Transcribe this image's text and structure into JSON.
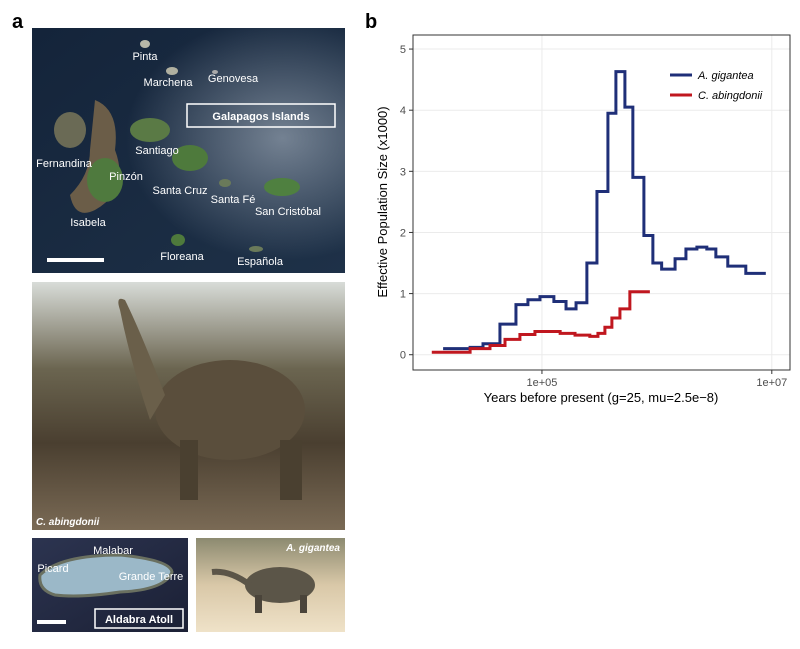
{
  "panel_labels": [
    "a",
    "b"
  ],
  "map": {
    "title": "Galapagos Islands",
    "islands": [
      "Pinta",
      "Marchena",
      "Genovesa",
      "Santiago",
      "Fernandina",
      "Pinzón",
      "Santa Cruz",
      "Santa Fé",
      "San Cristóbal",
      "Isabela",
      "Floreana",
      "Española"
    ]
  },
  "tortoise_photo": {
    "caption": "C. abingdonii"
  },
  "atoll": {
    "title": "Aldabra Atoll",
    "places": [
      "Picard",
      "Malabar",
      "Grande Terre"
    ]
  },
  "gigantea_photo": {
    "caption": "A. gigantea"
  },
  "chart_data": {
    "type": "step",
    "x_label": "Years before present (g=25, mu=2.5e−8)",
    "y_label": "Effective Population Size (x1000)",
    "log_x": true,
    "grid": true,
    "legend": "top-right",
    "xlim": [
      7550,
      14400000
    ],
    "ylim": [
      -0.25,
      5.23
    ],
    "xticks": [
      {
        "value": 100000,
        "label": "1e+05"
      },
      {
        "value": 10000000,
        "label": "1e+07"
      }
    ],
    "yticks": [
      0,
      1,
      2,
      3,
      4,
      5
    ],
    "series": [
      {
        "name": "A. gigantea",
        "color": "#1f2f78",
        "x": [
          13800,
          23700,
          30700,
          43100,
          59400,
          75500,
          96100,
          127000,
          162000,
          198000,
          246000,
          301000,
          375000,
          440000,
          527000,
          618000,
          771000,
          923000,
          1100000,
          1440000,
          1790000,
          2230000,
          2720000,
          3260000,
          4140000,
          5940000,
          8870000
        ],
        "values": [
          0.1,
          0.12,
          0.18,
          0.5,
          0.82,
          0.9,
          0.95,
          0.87,
          0.75,
          0.85,
          1.5,
          2.67,
          3.95,
          4.63,
          4.05,
          2.9,
          1.95,
          1.5,
          1.4,
          1.57,
          1.73,
          1.76,
          1.73,
          1.6,
          1.45,
          1.33,
          1.33
        ]
      },
      {
        "name": "C. abingdonii",
        "color": "#c0171f",
        "x": [
          11000,
          23700,
          35300,
          47700,
          64300,
          86900,
          144000,
          194000,
          261000,
          307000,
          353000,
          406000,
          477000,
          582000,
          869000
        ],
        "values": [
          0.04,
          0.1,
          0.15,
          0.25,
          0.33,
          0.38,
          0.35,
          0.32,
          0.3,
          0.35,
          0.45,
          0.6,
          0.75,
          1.03,
          1.03
        ]
      }
    ]
  }
}
